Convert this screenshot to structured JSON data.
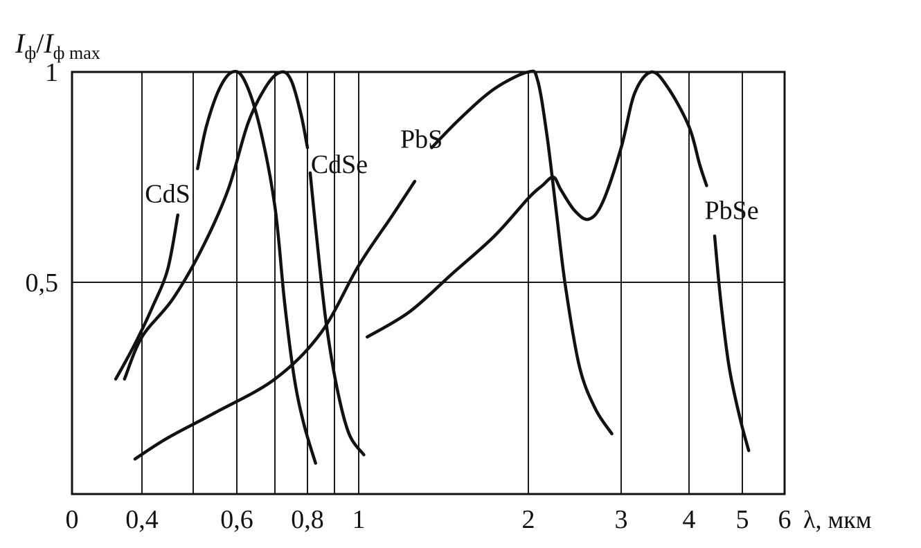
{
  "chart_data": {
    "type": "line",
    "ylabel": {
      "main": "I",
      "sub": "ф",
      "sep": "/",
      "main2": "I",
      "sub2": "ф max"
    },
    "xlabel": "λ,  мкм",
    "y_ticks": [
      {
        "v": 1,
        "label": "1"
      },
      {
        "v": 0.5,
        "label": "0,5"
      }
    ],
    "x_ticks": [
      {
        "v": 0,
        "label": "0"
      },
      {
        "v": 0.4,
        "label": "0,4"
      },
      {
        "v": 0.6,
        "label": "0,6"
      },
      {
        "v": 0.8,
        "label": "0,8"
      },
      {
        "v": 1,
        "label": "1"
      },
      {
        "v": 2,
        "label": "2"
      },
      {
        "v": 3,
        "label": "3"
      },
      {
        "v": 4,
        "label": "4"
      },
      {
        "v": 5,
        "label": "5"
      },
      {
        "v": 6,
        "label": "6"
      }
    ],
    "ylim": [
      0,
      1
    ],
    "grid": true,
    "series": [
      {
        "name": "CdS",
        "segments": [
          [
            [
              0.25,
              0.27
            ],
            [
              0.33,
              0.33
            ],
            [
              0.38,
              0.37
            ],
            [
              0.42,
              0.44
            ],
            [
              0.45,
              0.53
            ],
            [
              0.47,
              0.66
            ]
          ],
          [
            [
              0.51,
              0.77
            ],
            [
              0.53,
              0.87
            ],
            [
              0.56,
              0.96
            ],
            [
              0.59,
              1.0
            ],
            [
              0.62,
              0.98
            ],
            [
              0.66,
              0.87
            ],
            [
              0.7,
              0.68
            ],
            [
              0.73,
              0.45
            ],
            [
              0.76,
              0.27
            ],
            [
              0.79,
              0.16
            ],
            [
              0.83,
              0.07
            ]
          ]
        ]
      },
      {
        "name": "CdSe",
        "segments": [
          [
            [
              0.3,
              0.27
            ],
            [
              0.4,
              0.37
            ],
            [
              0.46,
              0.46
            ],
            [
              0.52,
              0.58
            ],
            [
              0.58,
              0.72
            ],
            [
              0.63,
              0.88
            ],
            [
              0.68,
              0.97
            ],
            [
              0.72,
              1.0
            ],
            [
              0.75,
              0.98
            ],
            [
              0.78,
              0.9
            ],
            [
              0.8,
              0.82
            ]
          ],
          [
            [
              0.81,
              0.76
            ],
            [
              0.84,
              0.57
            ],
            [
              0.87,
              0.4
            ],
            [
              0.91,
              0.25
            ],
            [
              0.96,
              0.14
            ],
            [
              1.03,
              0.09
            ]
          ]
        ]
      },
      {
        "name": "PbS",
        "segments": [
          [
            [
              0.36,
              0.08
            ],
            [
              0.45,
              0.13
            ],
            [
              0.55,
              0.19
            ],
            [
              0.7,
              0.27
            ],
            [
              0.85,
              0.38
            ],
            [
              1.0,
              0.54
            ],
            [
              1.2,
              0.66
            ],
            [
              1.33,
              0.74
            ]
          ],
          [
            [
              1.43,
              0.82
            ],
            [
              1.6,
              0.89
            ],
            [
              1.8,
              0.96
            ],
            [
              2.0,
              1.0
            ],
            [
              2.1,
              0.98
            ],
            [
              2.2,
              0.85
            ],
            [
              2.3,
              0.67
            ],
            [
              2.4,
              0.49
            ],
            [
              2.55,
              0.3
            ],
            [
              2.72,
              0.2
            ],
            [
              2.9,
              0.14
            ]
          ]
        ]
      },
      {
        "name": "PbSe",
        "segments": [
          [
            [
              1.05,
              0.37
            ],
            [
              1.3,
              0.43
            ],
            [
              1.55,
              0.52
            ],
            [
              1.8,
              0.61
            ],
            [
              2.0,
              0.7
            ],
            [
              2.15,
              0.73
            ],
            [
              2.27,
              0.75
            ],
            [
              2.35,
              0.72
            ],
            [
              2.5,
              0.67
            ],
            [
              2.65,
              0.65
            ],
            [
              2.8,
              0.69
            ],
            [
              3.0,
              0.82
            ],
            [
              3.2,
              0.95
            ],
            [
              3.45,
              1.0
            ],
            [
              3.7,
              0.96
            ],
            [
              4.0,
              0.87
            ],
            [
              4.2,
              0.78
            ],
            [
              4.33,
              0.73
            ]
          ],
          [
            [
              4.48,
              0.61
            ],
            [
              4.6,
              0.45
            ],
            [
              4.75,
              0.3
            ],
            [
              4.95,
              0.18
            ],
            [
              5.15,
              0.1
            ]
          ]
        ]
      }
    ],
    "curve_labels": [
      {
        "text": "CdS",
        "series": "CdS",
        "x": 0.45,
        "y": 0.71
      },
      {
        "text": "CdSe",
        "series": "CdSe",
        "x": 0.92,
        "y": 0.78
      },
      {
        "text": "PbS",
        "series": "PbS",
        "x": 1.37,
        "y": 0.84
      },
      {
        "text": "PbSe",
        "series": "PbSe",
        "x": 4.8,
        "y": 0.67
      }
    ]
  }
}
